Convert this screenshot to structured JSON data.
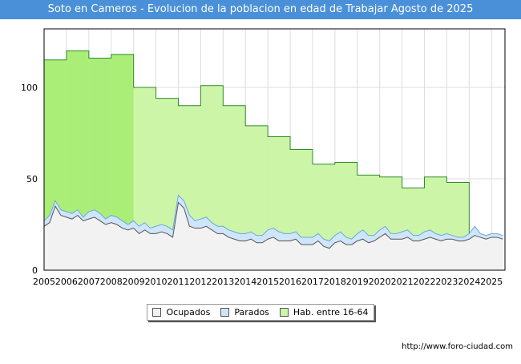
{
  "chart_data": {
    "type": "area",
    "title": "Soto en Cameros - Evolucion de la poblacion en edad de Trabajar Agosto de 2025",
    "xlabel": "",
    "ylabel": "",
    "x_ticks": [
      "2005",
      "2006",
      "2007",
      "2008",
      "2009",
      "2010",
      "2011",
      "2012",
      "2013",
      "2014",
      "2015",
      "2016",
      "2017",
      "2018",
      "2019",
      "2020",
      "2021",
      "2022",
      "2023",
      "2024",
      "2025"
    ],
    "y_ticks": [
      "0",
      "50",
      "100"
    ],
    "ylim": [
      0,
      132
    ],
    "xlim": [
      2005.0,
      2025.6
    ],
    "grid": true,
    "legend_position": "bottom",
    "colors": {
      "hab": "#ccf5a8",
      "hab_line": "#2e8b2e",
      "hab_dark": "#aaee77",
      "parados": "#cfe5fb",
      "parados_line": "#6aa8e0",
      "ocupados": "#f2f2f2",
      "ocupados_line": "#555555"
    },
    "series": [
      {
        "name": "Hab. entre 16-64",
        "annual_values": [
          {
            "year": 2005,
            "value": 115
          },
          {
            "year": 2006,
            "value": 120
          },
          {
            "year": 2007,
            "value": 116
          },
          {
            "year": 2008,
            "value": 118
          },
          {
            "year": 2009,
            "value": 100
          },
          {
            "year": 2010,
            "value": 94
          },
          {
            "year": 2011,
            "value": 90
          },
          {
            "year": 2012,
            "value": 101
          },
          {
            "year": 2013,
            "value": 90
          },
          {
            "year": 2014,
            "value": 79
          },
          {
            "year": 2015,
            "value": 73
          },
          {
            "year": 2016,
            "value": 66
          },
          {
            "year": 2017,
            "value": 58
          },
          {
            "year": 2018,
            "value": 59
          },
          {
            "year": 2019,
            "value": 52
          },
          {
            "year": 2020,
            "value": 51
          },
          {
            "year": 2021,
            "value": 45
          },
          {
            "year": 2022,
            "value": 51
          },
          {
            "year": 2023,
            "value": 48
          }
        ]
      },
      {
        "name": "Parados",
        "x": [
          2005.0,
          2005.25,
          2005.5,
          2005.75,
          2006.0,
          2006.25,
          2006.5,
          2006.75,
          2007.0,
          2007.25,
          2007.5,
          2007.75,
          2008.0,
          2008.25,
          2008.5,
          2008.75,
          2009.0,
          2009.25,
          2009.5,
          2009.75,
          2010.0,
          2010.25,
          2010.5,
          2010.75,
          2011.0,
          2011.25,
          2011.5,
          2011.75,
          2012.0,
          2012.25,
          2012.5,
          2012.75,
          2013.0,
          2013.25,
          2013.5,
          2013.75,
          2014.0,
          2014.25,
          2014.5,
          2014.75,
          2015.0,
          2015.25,
          2015.5,
          2015.75,
          2016.0,
          2016.25,
          2016.5,
          2016.75,
          2017.0,
          2017.25,
          2017.5,
          2017.75,
          2018.0,
          2018.25,
          2018.5,
          2018.75,
          2019.0,
          2019.25,
          2019.5,
          2019.75,
          2020.0,
          2020.25,
          2020.5,
          2020.75,
          2021.0,
          2021.25,
          2021.5,
          2021.75,
          2022.0,
          2022.25,
          2022.5,
          2022.75,
          2023.0,
          2023.25,
          2023.5,
          2023.75,
          2024.0,
          2024.25,
          2024.5,
          2024.75,
          2025.0,
          2025.25,
          2025.5
        ],
        "values": [
          27,
          30,
          38,
          33,
          32,
          31,
          33,
          29,
          32,
          33,
          31,
          28,
          30,
          29,
          27,
          25,
          27,
          24,
          26,
          23,
          24,
          25,
          24,
          22,
          41,
          38,
          30,
          27,
          28,
          29,
          26,
          24,
          24,
          22,
          21,
          20,
          20,
          21,
          19,
          19,
          22,
          23,
          21,
          20,
          20,
          21,
          18,
          18,
          18,
          20,
          17,
          16,
          19,
          21,
          18,
          17,
          20,
          22,
          19,
          19,
          22,
          24,
          20,
          20,
          21,
          22,
          19,
          19,
          21,
          22,
          20,
          19,
          20,
          19,
          18,
          18,
          20,
          24,
          20,
          19,
          20,
          20,
          19
        ]
      },
      {
        "name": "Ocupados",
        "x": [
          2005.0,
          2005.25,
          2005.5,
          2005.75,
          2006.0,
          2006.25,
          2006.5,
          2006.75,
          2007.0,
          2007.25,
          2007.5,
          2007.75,
          2008.0,
          2008.25,
          2008.5,
          2008.75,
          2009.0,
          2009.25,
          2009.5,
          2009.75,
          2010.0,
          2010.25,
          2010.5,
          2010.75,
          2011.0,
          2011.25,
          2011.5,
          2011.75,
          2012.0,
          2012.25,
          2012.5,
          2012.75,
          2013.0,
          2013.25,
          2013.5,
          2013.75,
          2014.0,
          2014.25,
          2014.5,
          2014.75,
          2015.0,
          2015.25,
          2015.5,
          2015.75,
          2016.0,
          2016.25,
          2016.5,
          2016.75,
          2017.0,
          2017.25,
          2017.5,
          2017.75,
          2018.0,
          2018.25,
          2018.5,
          2018.75,
          2019.0,
          2019.25,
          2019.5,
          2019.75,
          2020.0,
          2020.25,
          2020.5,
          2020.75,
          2021.0,
          2021.25,
          2021.5,
          2021.75,
          2022.0,
          2022.25,
          2022.5,
          2022.75,
          2023.0,
          2023.25,
          2023.5,
          2023.75,
          2024.0,
          2024.25,
          2024.5,
          2024.75,
          2025.0,
          2025.25,
          2025.5
        ],
        "values": [
          24,
          26,
          35,
          30,
          29,
          28,
          30,
          27,
          28,
          29,
          27,
          25,
          26,
          25,
          23,
          22,
          23,
          20,
          22,
          20,
          20,
          21,
          20,
          18,
          37,
          34,
          24,
          23,
          23,
          24,
          22,
          20,
          20,
          18,
          17,
          16,
          16,
          17,
          15,
          15,
          17,
          18,
          16,
          16,
          16,
          17,
          14,
          14,
          14,
          16,
          13,
          12,
          15,
          16,
          14,
          14,
          16,
          17,
          15,
          16,
          18,
          20,
          17,
          17,
          17,
          18,
          16,
          16,
          17,
          18,
          17,
          16,
          17,
          17,
          16,
          16,
          17,
          19,
          18,
          17,
          18,
          18,
          17
        ]
      }
    ]
  },
  "legend": {
    "ocupados": "Ocupados",
    "parados": "Parados",
    "hab": "Hab. entre 16-64"
  },
  "footer": {
    "url": "http://www.foro-ciudad.com"
  }
}
